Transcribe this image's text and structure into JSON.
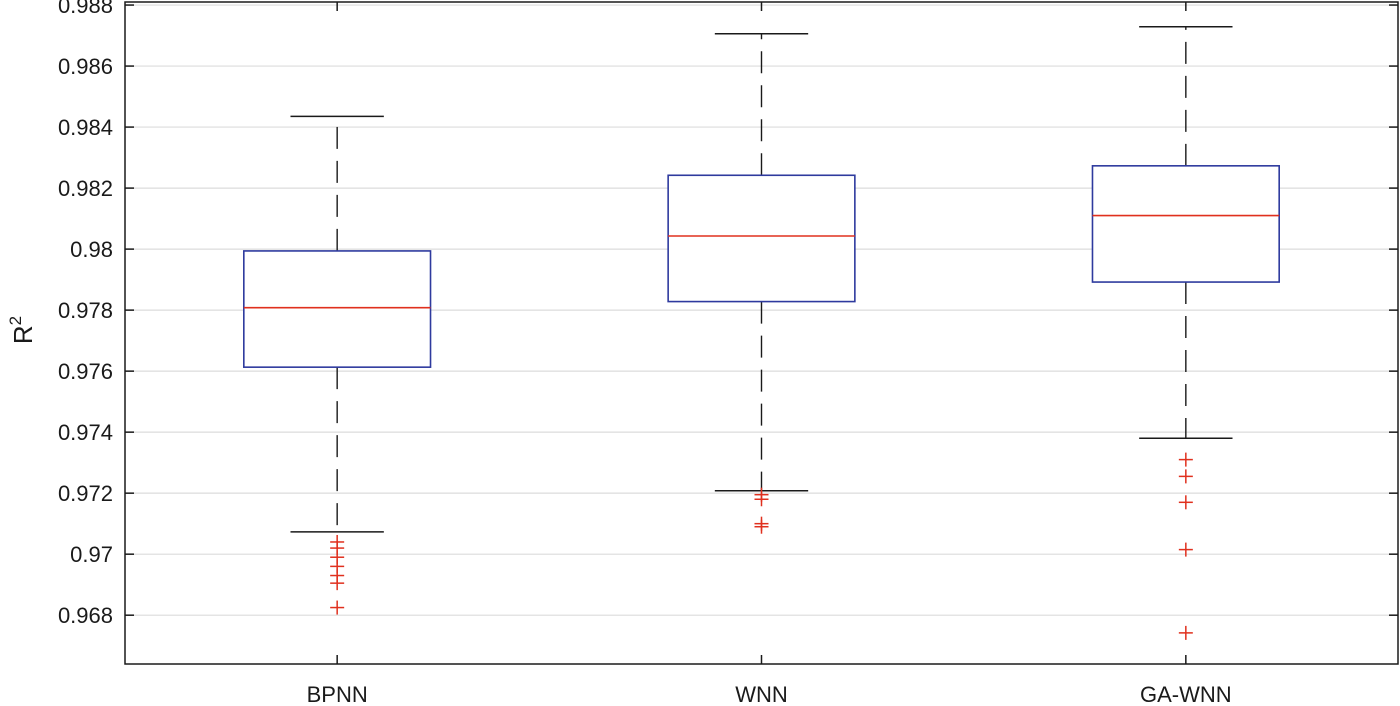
{
  "chart_data": {
    "type": "box",
    "title": "",
    "xlabel": "",
    "ylabel": "R",
    "ylabel_superscript": "2",
    "categories": [
      "BPNN",
      "WNN",
      "GA-WNN"
    ],
    "boxes": [
      {
        "name": "BPNN",
        "whisker_low": 0.97073,
        "q1": 0.97613,
        "median": 0.97808,
        "q3": 0.97994,
        "whisker_high": 0.98435,
        "outliers": [
          0.9704,
          0.9702,
          0.9699,
          0.9696,
          0.9693,
          0.96905,
          0.96825
        ]
      },
      {
        "name": "WNN",
        "whisker_low": 0.97208,
        "q1": 0.97828,
        "median": 0.98043,
        "q3": 0.98242,
        "whisker_high": 0.98706,
        "outliers": [
          0.97195,
          0.9718,
          0.971,
          0.9709
        ]
      },
      {
        "name": "GA-WNN",
        "whisker_low": 0.9738,
        "q1": 0.97892,
        "median": 0.9811,
        "q3": 0.98273,
        "whisker_high": 0.98729,
        "outliers": [
          0.9731,
          0.97255,
          0.9717,
          0.97015,
          0.96742
        ]
      }
    ],
    "ylim": [
      0.9664,
      0.9881
    ],
    "yticks": [
      0.968,
      0.97,
      0.972,
      0.974,
      0.976,
      0.978,
      0.98,
      0.982,
      0.984,
      0.986,
      0.988
    ],
    "ytick_labels": [
      "0.968",
      "0.97",
      "0.972",
      "0.974",
      "0.976",
      "0.978",
      "0.98",
      "0.982",
      "0.984",
      "0.986",
      "0.988"
    ],
    "grid": "horizontal",
    "colors": {
      "box": "#2e3a9e",
      "median": "#e0301e",
      "whisker": "#1a1a1a",
      "outlier": "#e0301e",
      "grid": "#dcdcdc",
      "axis": "#1a1a1a"
    }
  }
}
